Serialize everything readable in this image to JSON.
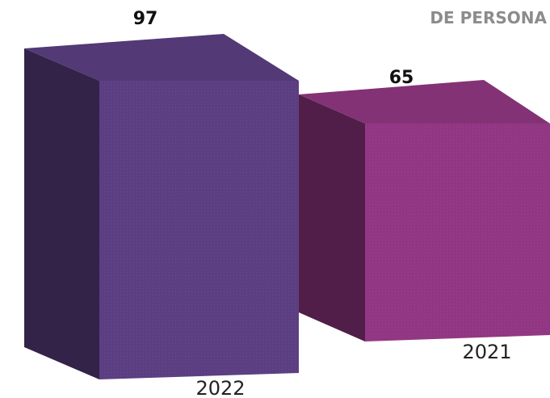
{
  "chart_data": {
    "type": "bar",
    "title": "DE PERSONA",
    "categories": [
      "2022",
      "2021"
    ],
    "values": [
      97,
      65
    ],
    "colors": [
      "#5c3f82",
      "#923783"
    ],
    "ylim": [
      0,
      100
    ],
    "grid": false,
    "legend": "none"
  }
}
